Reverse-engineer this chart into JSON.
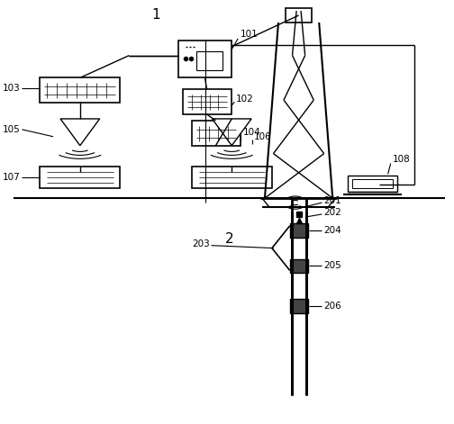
{
  "bg_color": "#ffffff",
  "line_color": "#000000",
  "fig_width": 5.04,
  "fig_height": 4.71,
  "dpi": 100
}
